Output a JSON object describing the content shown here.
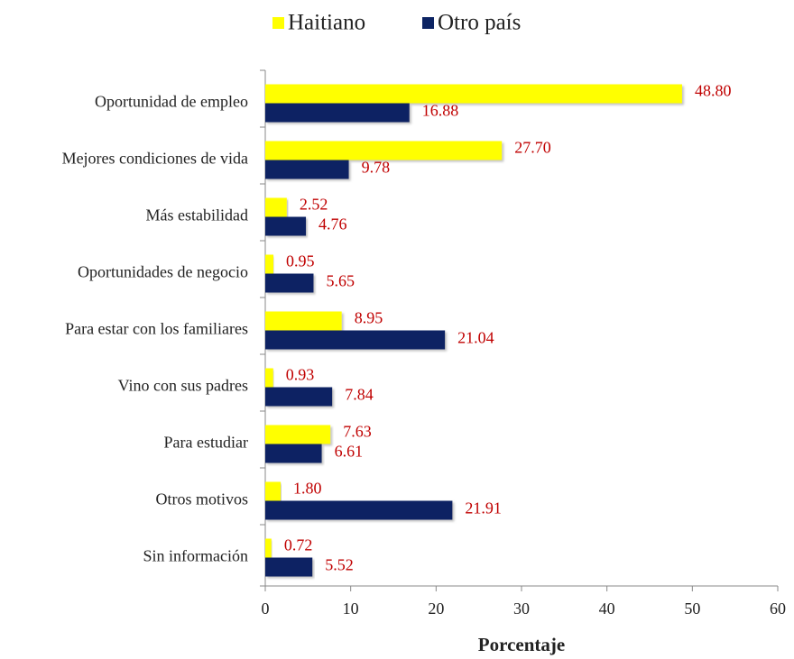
{
  "chart_data": {
    "type": "hbar",
    "x_label": "Porcentaje",
    "categories": [
      "Oportunidad de empleo",
      "Mejores condiciones de vida",
      "Más estabilidad",
      "Oportunidades de negocio",
      "Para estar con los familiares",
      "Vino con sus padres",
      "Para estudiar",
      "Otros motivos",
      "Sin información"
    ],
    "series": [
      {
        "name": "Haitiano",
        "color": "#ffff00",
        "values": [
          48.8,
          27.7,
          2.52,
          0.95,
          8.95,
          0.93,
          7.63,
          1.8,
          0.72
        ],
        "value_labels": [
          "48.80",
          "27.70",
          "2.52",
          "0.95",
          "8.95",
          "0.93",
          "7.63",
          "1.80",
          "0.72"
        ]
      },
      {
        "name": "Otro país",
        "color": "#0d2463",
        "values": [
          16.88,
          9.78,
          4.76,
          5.65,
          21.04,
          7.84,
          6.61,
          21.91,
          5.52
        ],
        "value_labels": [
          "16.88",
          "9.78",
          "4.76",
          "5.65",
          "21.04",
          "7.84",
          "6.61",
          "21.91",
          "5.52"
        ]
      }
    ],
    "xlim": [
      0,
      60
    ],
    "xticks": [
      0,
      10,
      20,
      30,
      40,
      50,
      60
    ],
    "grid": false,
    "legend": "top"
  }
}
